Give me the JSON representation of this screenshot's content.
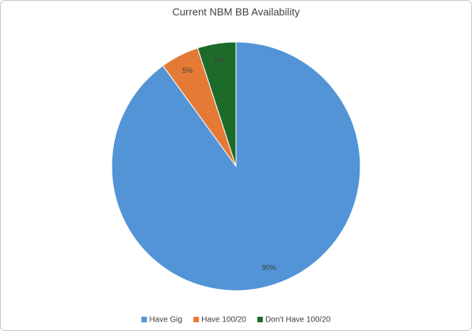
{
  "chart_data": {
    "type": "pie",
    "title": "Current NBM BB Availability",
    "categories": [
      "Have Gig",
      "Have 100/20",
      "Don't Have 100/20"
    ],
    "values": [
      90,
      5,
      5
    ],
    "value_labels": [
      "90%",
      "5%",
      "5%"
    ],
    "colors": [
      "#5294d6",
      "#e47a35",
      "#1d6b2b"
    ],
    "legend": "bottom"
  }
}
